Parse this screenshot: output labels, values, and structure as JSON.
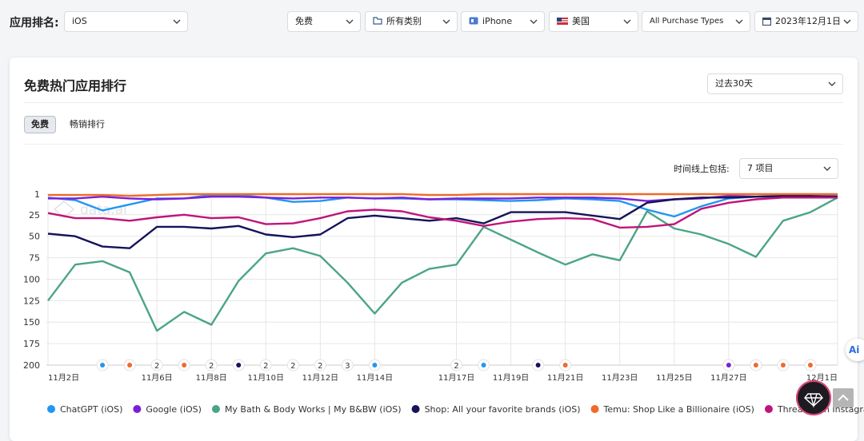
{
  "filters": {
    "label": "应用排名:",
    "platform": "iOS",
    "price": "免费",
    "category": "所有类别",
    "device": "iPhone",
    "country": "美国",
    "purchase": "All Purchase Types",
    "date": "2023年12月1日"
  },
  "card": {
    "title": "免费热门应用排行",
    "range": "过去30天",
    "tabs": [
      "免费",
      "畅销排行"
    ],
    "timeline_label": "时间线上包括:",
    "timeline_value": "7 项目"
  },
  "watermark": "data.ai",
  "assistant_badge": "Ai",
  "chart_data": {
    "type": "line",
    "categories": [
      "11月2日",
      null,
      null,
      null,
      "11月6日",
      null,
      "11月8日",
      null,
      "11月10日",
      null,
      "11月12日",
      null,
      "11月14日",
      null,
      null,
      "11月17日",
      null,
      "11月19日",
      null,
      "11月21日",
      null,
      "11月23日",
      null,
      "11月25日",
      null,
      "11月27日",
      null,
      null,
      null,
      "12月1日"
    ],
    "ylim": [
      1,
      200
    ],
    "y_inverted": true,
    "yticks": [
      1,
      25,
      50,
      75,
      100,
      125,
      150,
      175,
      200
    ],
    "grid": true,
    "series": [
      {
        "name": "ChatGPT (iOS)",
        "color": "#2196f3",
        "values": [
          5,
          8,
          20,
          13,
          6,
          6,
          2,
          2,
          5,
          10,
          9,
          5,
          6,
          6,
          7,
          7,
          8,
          9,
          8,
          6,
          7,
          9,
          19,
          27,
          15,
          6,
          4,
          3,
          4,
          3
        ]
      },
      {
        "name": "Google (iOS)",
        "color": "#7b1fd6",
        "values": [
          6,
          6,
          4,
          6,
          7,
          6,
          4,
          4,
          5,
          6,
          5,
          5,
          6,
          5,
          7,
          6,
          6,
          6,
          5,
          5,
          5,
          6,
          9,
          7,
          6,
          3,
          4,
          4,
          4,
          4
        ]
      },
      {
        "name": "My Bath & Body Works | My B&BW (iOS)",
        "color": "#4aa585",
        "values": [
          125,
          83,
          79,
          92,
          160,
          138,
          153,
          102,
          70,
          64,
          73,
          104,
          140,
          104,
          88,
          83,
          39,
          54,
          69,
          83,
          71,
          78,
          21,
          41,
          48,
          59,
          74,
          32,
          22,
          5
        ]
      },
      {
        "name": "Shop: All your favorite brands (iOS)",
        "color": "#15135a",
        "values": [
          47,
          50,
          62,
          64,
          39,
          39,
          41,
          38,
          48,
          51,
          48,
          29,
          26,
          29,
          32,
          29,
          35,
          22,
          22,
          22,
          26,
          30,
          11,
          7,
          5,
          5,
          4,
          3,
          3,
          4
        ]
      },
      {
        "name": "Temu: Shop Like a Billionaire (iOS)",
        "color": "#f06a2a",
        "values": [
          2,
          2,
          2,
          3,
          2,
          1,
          1,
          1,
          1,
          1,
          1,
          1,
          1,
          1,
          2,
          2,
          1,
          1,
          1,
          1,
          1,
          1,
          1,
          1,
          1,
          1,
          1,
          1,
          1,
          1
        ]
      },
      {
        "name": "Threads, an Instagram app (iOS)",
        "color": "#c0147a",
        "values": [
          23,
          29,
          29,
          32,
          28,
          25,
          29,
          28,
          36,
          35,
          29,
          21,
          19,
          21,
          28,
          32,
          38,
          33,
          30,
          29,
          30,
          40,
          39,
          36,
          18,
          11,
          7,
          5,
          5,
          5
        ]
      }
    ],
    "events": [
      null,
      null,
      {
        "color": "#2196f3"
      },
      {
        "color": "#f06a2a"
      },
      {
        "label": "2"
      },
      {
        "color": "#f06a2a"
      },
      {
        "label": "2"
      },
      {
        "color": "#15135a"
      },
      {
        "label": "2"
      },
      {
        "label": "2"
      },
      {
        "label": "2"
      },
      {
        "label": "3"
      },
      {
        "color": "#2196f3"
      },
      null,
      null,
      {
        "label": "2"
      },
      {
        "color": "#2196f3"
      },
      null,
      {
        "color": "#15135a"
      },
      {
        "color": "#f06a2a"
      },
      null,
      null,
      null,
      null,
      null,
      {
        "color": "#7b1fd6"
      },
      {
        "color": "#f06a2a"
      },
      {
        "color": "#f06a2a"
      },
      {
        "color": "#f06a2a"
      },
      null
    ]
  }
}
